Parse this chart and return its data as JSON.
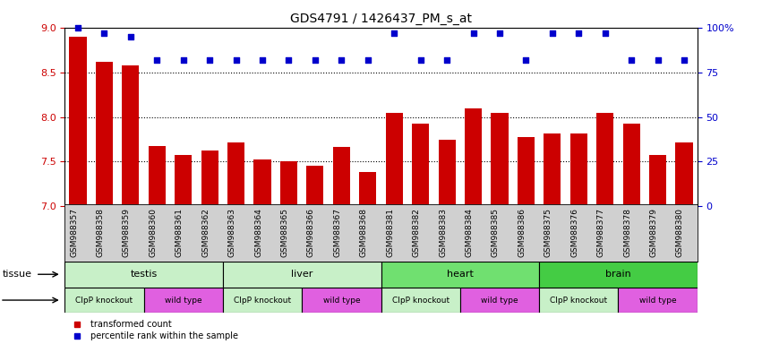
{
  "title": "GDS4791 / 1426437_PM_s_at",
  "samples": [
    "GSM988357",
    "GSM988358",
    "GSM988359",
    "GSM988360",
    "GSM988361",
    "GSM988362",
    "GSM988363",
    "GSM988364",
    "GSM988365",
    "GSM988366",
    "GSM988367",
    "GSM988368",
    "GSM988381",
    "GSM988382",
    "GSM988383",
    "GSM988384",
    "GSM988385",
    "GSM988386",
    "GSM988375",
    "GSM988376",
    "GSM988377",
    "GSM988378",
    "GSM988379",
    "GSM988380"
  ],
  "bar_values": [
    8.9,
    8.62,
    8.58,
    7.68,
    7.57,
    7.63,
    7.72,
    7.52,
    7.5,
    7.45,
    7.67,
    7.38,
    8.05,
    7.93,
    7.75,
    8.1,
    8.05,
    7.78,
    7.82,
    7.82,
    8.05,
    7.93,
    7.57,
    7.72
  ],
  "percentile_values": [
    100,
    97,
    95,
    82,
    82,
    82,
    82,
    82,
    82,
    82,
    82,
    82,
    97,
    82,
    82,
    97,
    97,
    82,
    97,
    97,
    97,
    82,
    82,
    82
  ],
  "bar_color": "#cc0000",
  "percentile_color": "#0000cc",
  "ylim_left": [
    7.0,
    9.0
  ],
  "ylim_right": [
    0,
    100
  ],
  "yticks_left": [
    7.0,
    7.5,
    8.0,
    8.5,
    9.0
  ],
  "yticks_right": [
    0,
    25,
    50,
    75,
    100
  ],
  "grid_values": [
    7.5,
    8.0,
    8.5
  ],
  "tissues": [
    {
      "label": "testis",
      "start": 0,
      "end": 6,
      "color": "#c8f0c8"
    },
    {
      "label": "liver",
      "start": 6,
      "end": 12,
      "color": "#c8f0c8"
    },
    {
      "label": "heart",
      "start": 12,
      "end": 18,
      "color": "#70e070"
    },
    {
      "label": "brain",
      "start": 18,
      "end": 24,
      "color": "#44cc44"
    }
  ],
  "genotypes": [
    {
      "label": "ClpP knockout",
      "start": 0,
      "end": 3,
      "color": "#c8f0c8"
    },
    {
      "label": "wild type",
      "start": 3,
      "end": 6,
      "color": "#e060e0"
    },
    {
      "label": "ClpP knockout",
      "start": 6,
      "end": 9,
      "color": "#c8f0c8"
    },
    {
      "label": "wild type",
      "start": 9,
      "end": 12,
      "color": "#e060e0"
    },
    {
      "label": "ClpP knockout",
      "start": 12,
      "end": 15,
      "color": "#c8f0c8"
    },
    {
      "label": "wild type",
      "start": 15,
      "end": 18,
      "color": "#e060e0"
    },
    {
      "label": "ClpP knockout",
      "start": 18,
      "end": 21,
      "color": "#c8f0c8"
    },
    {
      "label": "wild type",
      "start": 21,
      "end": 24,
      "color": "#e060e0"
    }
  ],
  "legend_items": [
    {
      "label": "transformed count",
      "color": "#cc0000"
    },
    {
      "label": "percentile rank within the sample",
      "color": "#0000cc"
    }
  ],
  "xtick_bg_color": "#d0d0d0",
  "title_fontsize": 10,
  "tick_fontsize": 6.5,
  "label_fontsize": 8
}
